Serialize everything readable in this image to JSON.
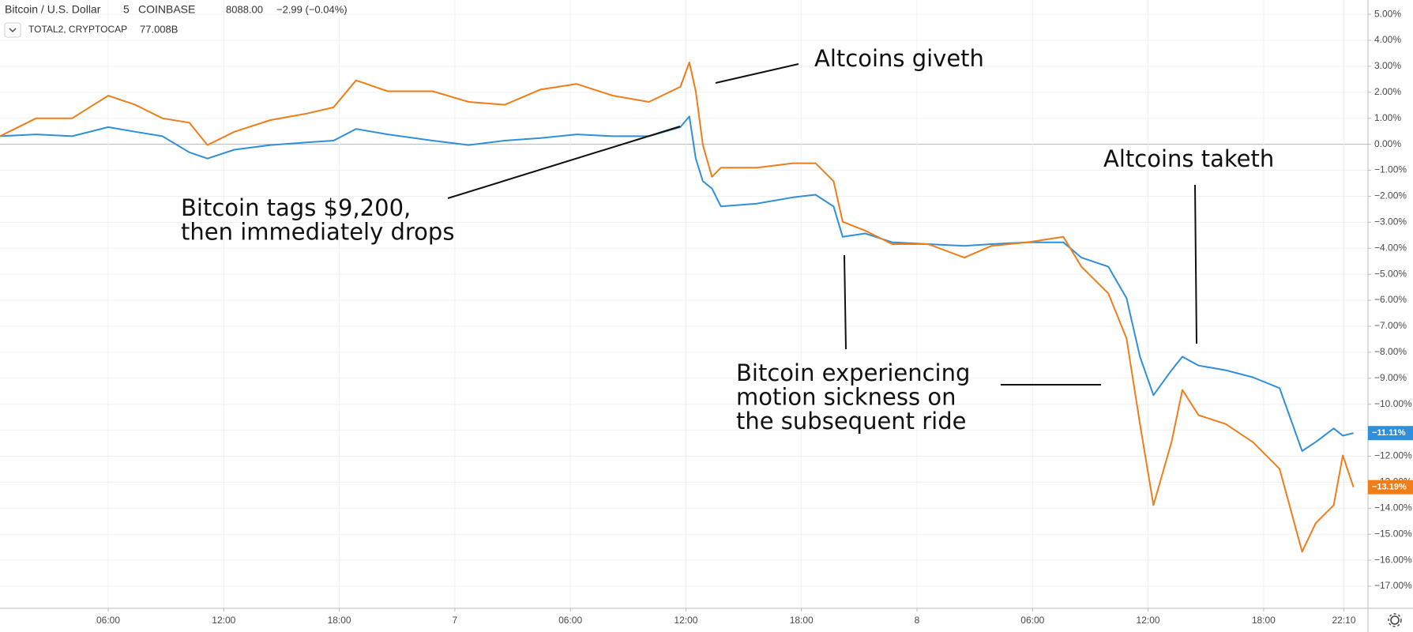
{
  "chart_data": {
    "type": "line",
    "interval": "5",
    "exchange": "COINBASE",
    "x": [
      0.38,
      2.26,
      4.13,
      6,
      7.4,
      8.81,
      10.21,
      11.15,
      12.55,
      14.42,
      16.3,
      17.7,
      18.87,
      20.51,
      22.85,
      24.72,
      26.59,
      28.46,
      30.33,
      32.21,
      34.08,
      35.71,
      36.18,
      36.51,
      36.88,
      37.35,
      37.82,
      39.69,
      41.56,
      42.73,
      43.67,
      44.14,
      45.31,
      46.71,
      48.58,
      50.46,
      51.86,
      53.73,
      55.6,
      56.54,
      57.94,
      58.88,
      59.58,
      60.28,
      61.22,
      61.78,
      62.62,
      64.03,
      65.43,
      66.83,
      68.0,
      68.71,
      69.64,
      70.11,
      70.67
    ],
    "series": [
      {
        "name": "Bitcoin / U.S. Dollar",
        "color": "#2f8fd8",
        "price": "8088.00",
        "change": "−2.99 (−0.04%)",
        "last_label": "−11.11%",
        "values": [
          0.31,
          0.38,
          0.31,
          0.66,
          0.48,
          0.31,
          -0.31,
          -0.55,
          -0.21,
          -0.03,
          0.07,
          0.14,
          0.59,
          0.38,
          0.14,
          -0.03,
          0.14,
          0.24,
          0.38,
          0.31,
          0.31,
          0.66,
          1.07,
          -0.55,
          -1.42,
          -1.7,
          -2.39,
          -2.28,
          -2.04,
          -1.94,
          -2.39,
          -3.56,
          -3.43,
          -3.77,
          -3.84,
          -3.91,
          -3.84,
          -3.77,
          -3.77,
          -4.36,
          -4.71,
          -5.92,
          -8.17,
          -9.65,
          -8.69,
          -8.17,
          -8.51,
          -8.69,
          -8.96,
          -9.38,
          -11.8,
          -11.45,
          -10.93,
          -11.21,
          -11.11
        ]
      },
      {
        "name": "TOTAL2, CRYPTOCAP",
        "color": "#ef7d1a",
        "price": "77.008B",
        "last_label": "−13.19%",
        "values": [
          0.31,
          1.0,
          1.0,
          1.87,
          1.52,
          1.0,
          0.83,
          -0.03,
          0.48,
          0.93,
          1.18,
          1.42,
          2.46,
          2.04,
          2.04,
          1.63,
          1.52,
          2.11,
          2.32,
          1.87,
          1.63,
          2.21,
          3.15,
          2.04,
          -0.03,
          -1.25,
          -0.9,
          -0.9,
          -0.73,
          -0.73,
          -1.42,
          -2.98,
          -3.32,
          -3.84,
          -3.84,
          -4.36,
          -3.91,
          -3.77,
          -3.56,
          -4.71,
          -5.74,
          -7.47,
          -10.76,
          -13.88,
          -11.45,
          -9.45,
          -10.42,
          -10.76,
          -11.45,
          -12.49,
          -15.67,
          -14.57,
          -13.88,
          -11.97,
          -13.19
        ]
      }
    ],
    "xlim": [
      0.38,
      71.42
    ],
    "xticks": [
      {
        "value": 6,
        "label": "06:00"
      },
      {
        "value": 12,
        "label": "12:00"
      },
      {
        "value": 18,
        "label": "18:00"
      },
      {
        "value": 24,
        "label": "7"
      },
      {
        "value": 30,
        "label": "06:00"
      },
      {
        "value": 36,
        "label": "12:00"
      },
      {
        "value": 42,
        "label": "18:00"
      },
      {
        "value": 48,
        "label": "8"
      },
      {
        "value": 54,
        "label": "06:00"
      },
      {
        "value": 60,
        "label": "12:00"
      },
      {
        "value": 66,
        "label": "18:00"
      },
      {
        "value": 70.17,
        "label": "22:10"
      }
    ],
    "ylim": [
      -17.85,
      5.55
    ],
    "yticks": [
      {
        "value": 5,
        "label": "5.00%"
      },
      {
        "value": 4,
        "label": "4.00%"
      },
      {
        "value": 3,
        "label": "3.00%"
      },
      {
        "value": 2,
        "label": "2.00%"
      },
      {
        "value": 1,
        "label": "1.00%"
      },
      {
        "value": 0,
        "label": "0.00%"
      },
      {
        "value": -1,
        "label": "−1.00%"
      },
      {
        "value": -2,
        "label": "−2.00%"
      },
      {
        "value": -3,
        "label": "−3.00%"
      },
      {
        "value": -4,
        "label": "−4.00%"
      },
      {
        "value": -5,
        "label": "−5.00%"
      },
      {
        "value": -6,
        "label": "−6.00%"
      },
      {
        "value": -7,
        "label": "−7.00%"
      },
      {
        "value": -8,
        "label": "−8.00%"
      },
      {
        "value": -9,
        "label": "−9.00%"
      },
      {
        "value": -10,
        "label": "−10.00%"
      },
      {
        "value": -11,
        "label": "−11.00%"
      },
      {
        "value": -12,
        "label": "−12.00%"
      },
      {
        "value": -13,
        "label": "−13.00%"
      },
      {
        "value": -14,
        "label": "−14.00%"
      },
      {
        "value": -15,
        "label": "−15.00%"
      },
      {
        "value": -16,
        "label": "−16.00%"
      },
      {
        "value": -17,
        "label": "−17.00%"
      }
    ],
    "grid": true,
    "annotations": [
      {
        "lines": [
          "Altcoins giveth"
        ]
      },
      {
        "lines": [
          "Bitcoin tags $9,200,",
          "then immediately drops"
        ]
      },
      {
        "lines": [
          "Altcoins taketh"
        ]
      },
      {
        "lines": [
          "Bitcoin experiencing",
          "motion sickness on",
          "the subsequent ride"
        ]
      }
    ]
  }
}
